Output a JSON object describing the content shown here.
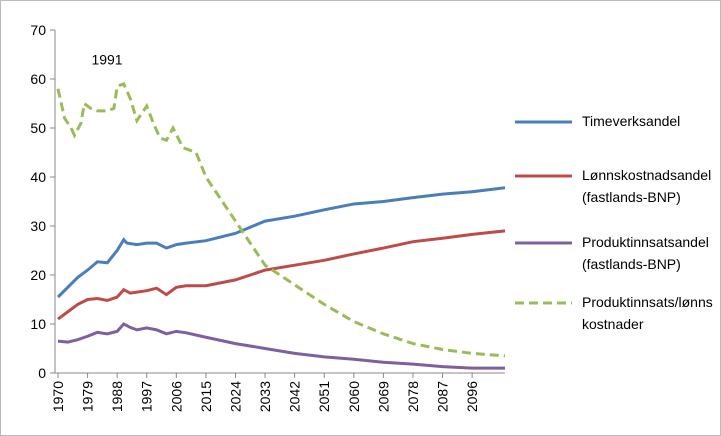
{
  "chart_data": {
    "type": "line",
    "annotations": [
      {
        "text": "1991",
        "x": 1991,
        "y": 63
      }
    ],
    "xlim": [
      1970,
      2106
    ],
    "xticks": [
      1970,
      1979,
      1988,
      1997,
      2006,
      2015,
      2024,
      2033,
      2042,
      2051,
      2060,
      2069,
      2078,
      2087,
      2096
    ],
    "ylim": [
      0,
      70
    ],
    "yticks": [
      0,
      10,
      20,
      30,
      40,
      50,
      60,
      70
    ],
    "series": [
      {
        "name": "Timeverksandel",
        "color": "#4a7ebb",
        "dashed": false,
        "x": [
          1970,
          1973,
          1976,
          1979,
          1982,
          1985,
          1988,
          1990,
          1991,
          1994,
          1997,
          2000,
          2003,
          2006,
          2009,
          2015,
          2024,
          2033,
          2042,
          2051,
          2060,
          2069,
          2078,
          2087,
          2096,
          2106
        ],
        "values": [
          15.5,
          17.5,
          19.5,
          21,
          22.7,
          22.5,
          25,
          27.2,
          26.5,
          26.2,
          26.5,
          26.5,
          25.5,
          26.2,
          26.5,
          27,
          28.5,
          31,
          32,
          33.3,
          34.5,
          35,
          35.8,
          36.5,
          37,
          37.8
        ]
      },
      {
        "name": "Lønnskostnadsandel\n(fastlands-BNP)",
        "color": "#be4b48",
        "dashed": false,
        "x": [
          1970,
          1973,
          1976,
          1979,
          1982,
          1985,
          1988,
          1990,
          1992,
          1994,
          1997,
          2000,
          2003,
          2006,
          2009,
          2015,
          2024,
          2033,
          2042,
          2051,
          2060,
          2069,
          2078,
          2087,
          2096,
          2106
        ],
        "values": [
          11,
          12.5,
          14,
          15,
          15.2,
          14.8,
          15.5,
          17,
          16.3,
          16.5,
          16.8,
          17.3,
          16,
          17.5,
          17.8,
          17.8,
          19,
          21,
          22,
          23,
          24.3,
          25.5,
          26.8,
          27.5,
          28.3,
          29
        ]
      },
      {
        "name": "Produktinnsatsandel\n(fastlands-BNP)",
        "color": "#7d60a0",
        "dashed": false,
        "x": [
          1970,
          1973,
          1976,
          1979,
          1982,
          1985,
          1988,
          1990,
          1992,
          1994,
          1997,
          2000,
          2003,
          2006,
          2009,
          2015,
          2024,
          2033,
          2042,
          2051,
          2060,
          2069,
          2078,
          2087,
          2096,
          2106
        ],
        "values": [
          6.5,
          6.3,
          6.8,
          7.5,
          8.3,
          8,
          8.5,
          10,
          9.3,
          8.8,
          9.2,
          8.8,
          8,
          8.5,
          8.2,
          7.3,
          6,
          5,
          4,
          3.3,
          2.8,
          2.2,
          1.8,
          1.3,
          1,
          1
        ]
      },
      {
        "name": "Produktinnsats/lønns\nkostnader",
        "color": "#9bbb59",
        "dashed": true,
        "x": [
          1970,
          1972,
          1974,
          1975,
          1977,
          1978,
          1980,
          1982,
          1985,
          1987,
          1988,
          1990,
          1992,
          1994,
          1997,
          1999,
          2001,
          2003,
          2005,
          2008,
          2012,
          2015,
          2024,
          2033,
          2042,
          2051,
          2060,
          2069,
          2078,
          2087,
          2096,
          2106
        ],
        "values": [
          58,
          52,
          50,
          48.5,
          51,
          55,
          54,
          53.5,
          53.5,
          54,
          58.5,
          59,
          56,
          51.5,
          54.5,
          51,
          48,
          47.5,
          50,
          46,
          45,
          40,
          31,
          22,
          18,
          14,
          10.5,
          8,
          6,
          4.8,
          4,
          3.5
        ]
      }
    ]
  }
}
